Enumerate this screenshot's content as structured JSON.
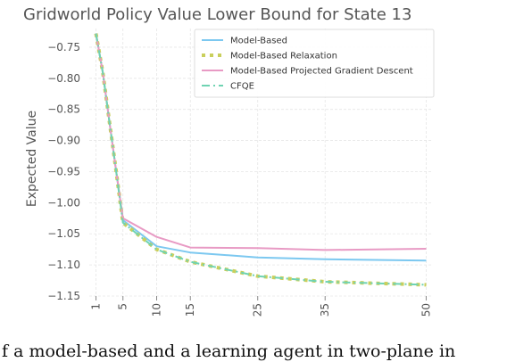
{
  "chart_data": {
    "type": "line",
    "title": "Gridworld Policy Value Lower Bound for State 13",
    "xlabel": "",
    "ylabel": "Expected Value",
    "xlim": [
      0,
      51
    ],
    "ylim": [
      -1.15,
      -0.72
    ],
    "x_ticks": [
      1,
      5,
      10,
      15,
      25,
      35,
      50
    ],
    "x_tick_labels": [
      "1",
      "5",
      "10",
      "15",
      "25",
      "35",
      "50"
    ],
    "y_ticks": [
      -0.75,
      -0.8,
      -0.85,
      -0.9,
      -0.95,
      -1.0,
      -1.05,
      -1.1,
      -1.15
    ],
    "y_tick_labels": [
      "−0.75",
      "−0.80",
      "−0.85",
      "−0.90",
      "−0.95",
      "−1.00",
      "−1.05",
      "−1.10",
      "−1.15"
    ],
    "grid": true,
    "legend_position": "top-right",
    "series": [
      {
        "name": "Model-Based",
        "color": "#7cc8f0",
        "style": "solid",
        "x": [
          1,
          2,
          3,
          4,
          5,
          10,
          15,
          25,
          35,
          50
        ],
        "y": [
          -0.728,
          -0.79,
          -0.87,
          -0.95,
          -1.028,
          -1.07,
          -1.08,
          -1.088,
          -1.091,
          -1.093
        ]
      },
      {
        "name": "Model-Based Relaxation",
        "color": "#c9cf5c",
        "style": "dotted",
        "x": [
          1,
          2,
          3,
          4,
          5,
          10,
          15,
          25,
          35,
          50
        ],
        "y": [
          -0.728,
          -0.79,
          -0.87,
          -0.95,
          -1.032,
          -1.075,
          -1.095,
          -1.118,
          -1.127,
          -1.132
        ]
      },
      {
        "name": "Model-Based Projected Gradient Descent",
        "color": "#e89ac4",
        "style": "solid",
        "x": [
          1,
          2,
          3,
          4,
          5,
          10,
          15,
          25,
          35,
          50
        ],
        "y": [
          -0.728,
          -0.79,
          -0.87,
          -0.95,
          -1.025,
          -1.055,
          -1.072,
          -1.073,
          -1.076,
          -1.074
        ]
      },
      {
        "name": "CFQE",
        "color": "#6fd3b2",
        "style": "dashdot",
        "x": [
          1,
          2,
          3,
          4,
          5,
          10,
          15,
          25,
          35,
          50
        ],
        "y": [
          -0.728,
          -0.79,
          -0.87,
          -0.95,
          -1.032,
          -1.075,
          -1.095,
          -1.118,
          -1.127,
          -1.132
        ]
      }
    ]
  },
  "caption": "f a model-based and a learning agent in two-plane in"
}
